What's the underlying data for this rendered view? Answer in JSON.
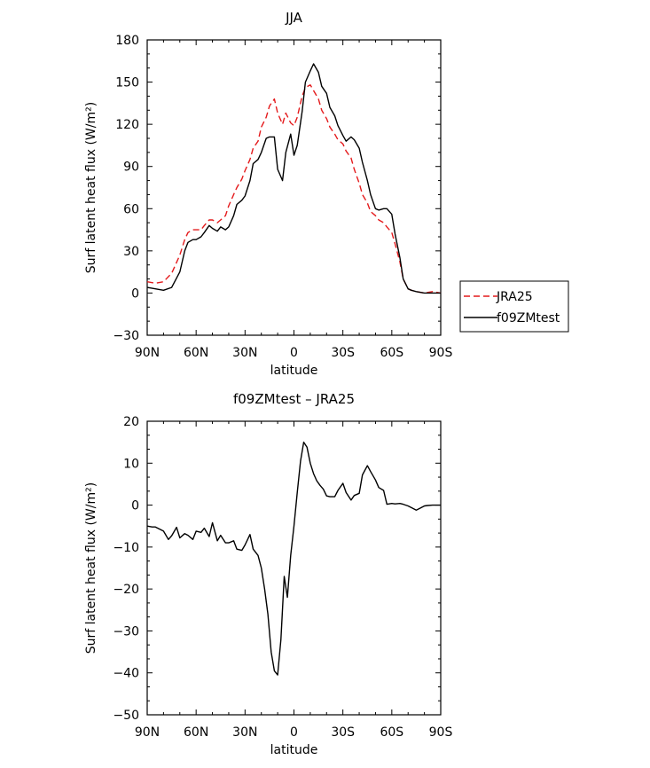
{
  "chart_data": [
    {
      "type": "line",
      "title": "JJA",
      "xlabel": "latitude",
      "ylabel": "Surf latent heat flux (W/m²)",
      "xlim": [
        90,
        -90
      ],
      "ylim": [
        -30,
        180
      ],
      "yticks": [
        -30,
        0,
        30,
        60,
        90,
        120,
        150,
        180
      ],
      "xticks": [
        90,
        60,
        30,
        0,
        -30,
        -60,
        -90
      ],
      "xtick_labels": [
        "90N",
        "60N",
        "30N",
        "0",
        "30S",
        "60S",
        "90S"
      ],
      "legend_position": "right",
      "series": [
        {
          "name": "JRA25",
          "color": "#e41a1c",
          "dash": "dashed",
          "x": [
            90,
            85,
            80,
            75,
            70,
            67,
            65,
            62,
            60,
            57,
            55,
            52,
            50,
            47,
            45,
            42,
            40,
            37,
            35,
            32,
            30,
            27,
            25,
            22,
            20,
            17,
            15,
            12,
            10,
            7,
            5,
            2,
            0,
            -2,
            -5,
            -7,
            -10,
            -12,
            -15,
            -17,
            -20,
            -22,
            -25,
            -27,
            -30,
            -32,
            -35,
            -37,
            -40,
            -42,
            -45,
            -47,
            -50,
            -52,
            -55,
            -57,
            -60,
            -62,
            -65,
            -67,
            -70,
            -72,
            -75,
            -80,
            -85,
            -90
          ],
          "y": [
            8,
            7,
            8,
            14,
            27,
            38,
            43,
            45,
            45,
            45,
            48,
            52,
            52,
            50,
            52,
            55,
            62,
            70,
            75,
            81,
            87,
            95,
            103,
            108,
            118,
            125,
            133,
            138,
            128,
            120,
            128,
            121,
            119,
            125,
            140,
            146,
            148,
            144,
            138,
            130,
            124,
            118,
            113,
            109,
            106,
            101,
            96,
            88,
            78,
            70,
            64,
            58,
            55,
            52,
            50,
            47,
            43,
            35,
            22,
            10,
            3,
            2,
            1,
            0,
            1,
            0
          ]
        },
        {
          "name": "f09ZMtest",
          "color": "#000000",
          "dash": "solid",
          "x": [
            90,
            85,
            80,
            75,
            70,
            67,
            65,
            62,
            60,
            57,
            55,
            52,
            50,
            47,
            45,
            42,
            40,
            37,
            35,
            32,
            30,
            27,
            25,
            22,
            20,
            17,
            15,
            12,
            10,
            7,
            5,
            2,
            0,
            -2,
            -5,
            -7,
            -10,
            -12,
            -15,
            -17,
            -20,
            -22,
            -25,
            -27,
            -30,
            -32,
            -35,
            -37,
            -40,
            -42,
            -45,
            -47,
            -50,
            -52,
            -55,
            -57,
            -60,
            -62,
            -65,
            -67,
            -70,
            -72,
            -75,
            -80,
            -85,
            -90
          ],
          "y": [
            4,
            3,
            2,
            4,
            15,
            30,
            36,
            38,
            38,
            40,
            43,
            48,
            46,
            44,
            47,
            45,
            47,
            55,
            63,
            66,
            69,
            80,
            92,
            95,
            100,
            110,
            111,
            111,
            88,
            80,
            100,
            113,
            98,
            105,
            129,
            150,
            158,
            163,
            157,
            147,
            142,
            132,
            126,
            119,
            112,
            108,
            111,
            109,
            103,
            93,
            80,
            70,
            60,
            59,
            60,
            60,
            56,
            42,
            25,
            10,
            3,
            2,
            1,
            0,
            0,
            0
          ]
        }
      ]
    },
    {
      "type": "line",
      "title": "f09ZMtest – JRA25",
      "xlabel": "latitude",
      "ylabel": "Surf latent heat flux (W/m²)",
      "xlim": [
        90,
        -90
      ],
      "ylim": [
        -50,
        20
      ],
      "yticks": [
        -50,
        -40,
        -30,
        -20,
        -10,
        0,
        10,
        20
      ],
      "xticks": [
        90,
        60,
        30,
        0,
        -30,
        -60,
        -90
      ],
      "xtick_labels": [
        "90N",
        "60N",
        "30N",
        "0",
        "30S",
        "60S",
        "90S"
      ],
      "series": [
        {
          "color": "#000000",
          "dash": "solid",
          "x": [
            90,
            87,
            85,
            82,
            80,
            77,
            75,
            72,
            70,
            67,
            65,
            62,
            60,
            57,
            55,
            52,
            50,
            47,
            45,
            42,
            40,
            37,
            35,
            32,
            30,
            27,
            25,
            22,
            20,
            18,
            16,
            14,
            12,
            10,
            8,
            6,
            4,
            2,
            0,
            -2,
            -4,
            -6,
            -8,
            -10,
            -12,
            -14,
            -16,
            -18,
            -20,
            -22,
            -25,
            -27,
            -30,
            -32,
            -35,
            -37,
            -40,
            -42,
            -45,
            -47,
            -50,
            -52,
            -55,
            -57,
            -60,
            -62,
            -65,
            -67,
            -70,
            -72,
            -75,
            -77,
            -80,
            -82,
            -85,
            -87,
            -90
          ],
          "y": [
            -5,
            -5.2,
            -5.2,
            -5.8,
            -6.2,
            -8.2,
            -7.3,
            -5.3,
            -7.8,
            -6.8,
            -7.2,
            -8.2,
            -6.2,
            -6.5,
            -5.5,
            -7.5,
            -4.2,
            -8.5,
            -7.2,
            -9.0,
            -9.0,
            -8.5,
            -10.5,
            -10.8,
            -9.5,
            -7.0,
            -10.5,
            -12.0,
            -15.0,
            -20.0,
            -26.0,
            -35.0,
            -39.5,
            -40.5,
            -32.0,
            -17.0,
            -22.0,
            -12.0,
            -5.0,
            3.0,
            10.5,
            15.0,
            13.8,
            10.0,
            7.5,
            5.8,
            4.7,
            3.8,
            2.2,
            2.0,
            2.0,
            3.5,
            5.2,
            3.0,
            1.2,
            2.3,
            2.8,
            7.2,
            9.4,
            8.0,
            6.0,
            4.2,
            3.5,
            0.2,
            0.4,
            0.3,
            0.4,
            0.2,
            -0.2,
            -0.6,
            -1.2,
            -0.8,
            -0.2,
            -0.1,
            0.0,
            0.0,
            0.0
          ]
        }
      ]
    }
  ]
}
